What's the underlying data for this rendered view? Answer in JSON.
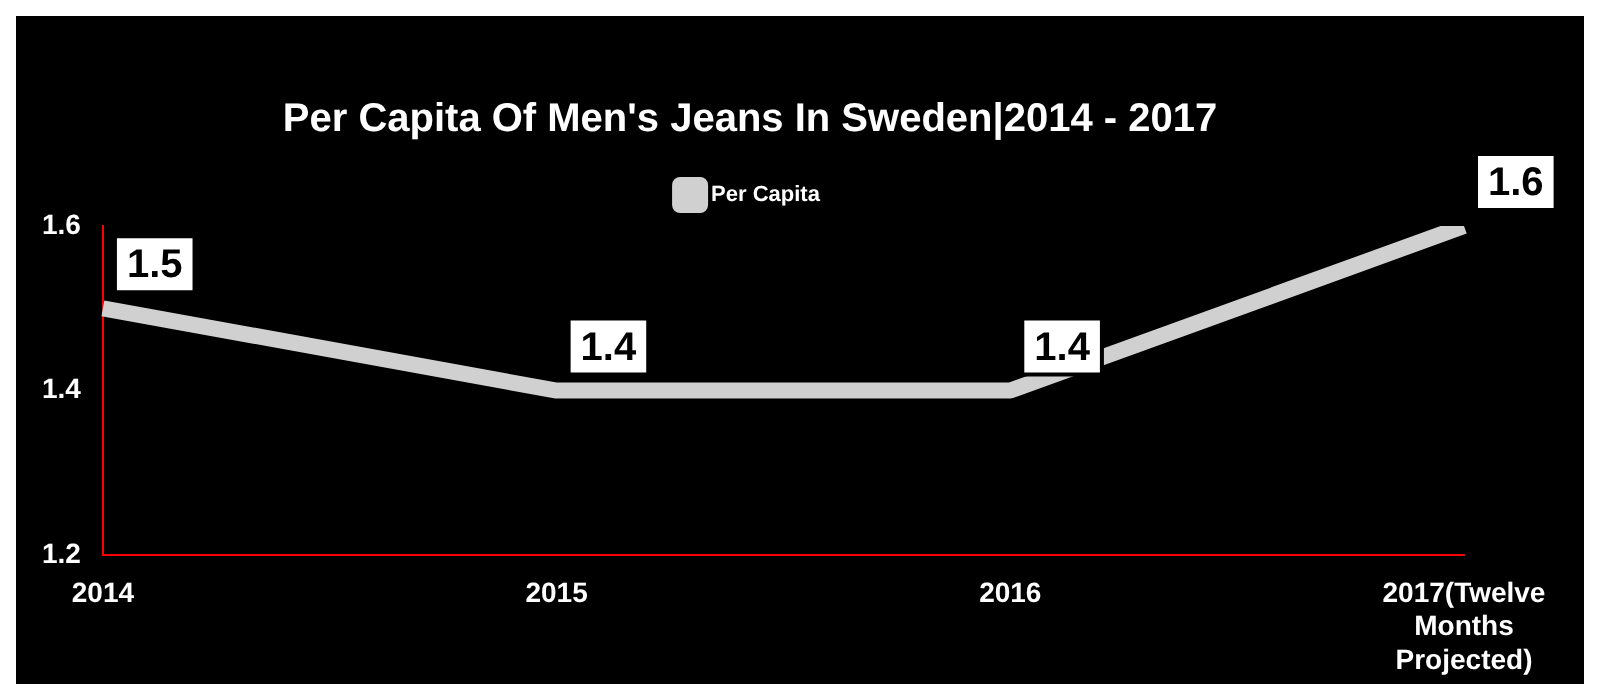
{
  "chart_data": {
    "type": "line",
    "title": "Per Capita Of Men's Jeans In Sweden|2014 - 2017",
    "categories": [
      "2014",
      "2015",
      "2016",
      "2017(Twelve Months Projected)"
    ],
    "series": [
      {
        "name": "Per Capita",
        "color": "#d0d0d0",
        "values": [
          1.5,
          1.4,
          1.4,
          1.6
        ]
      }
    ],
    "ylim": [
      1.2,
      1.6
    ],
    "yticks": [
      1.2,
      1.4,
      1.6
    ],
    "grid": false,
    "legend": "top",
    "data_labels": true,
    "marker": "none"
  }
}
